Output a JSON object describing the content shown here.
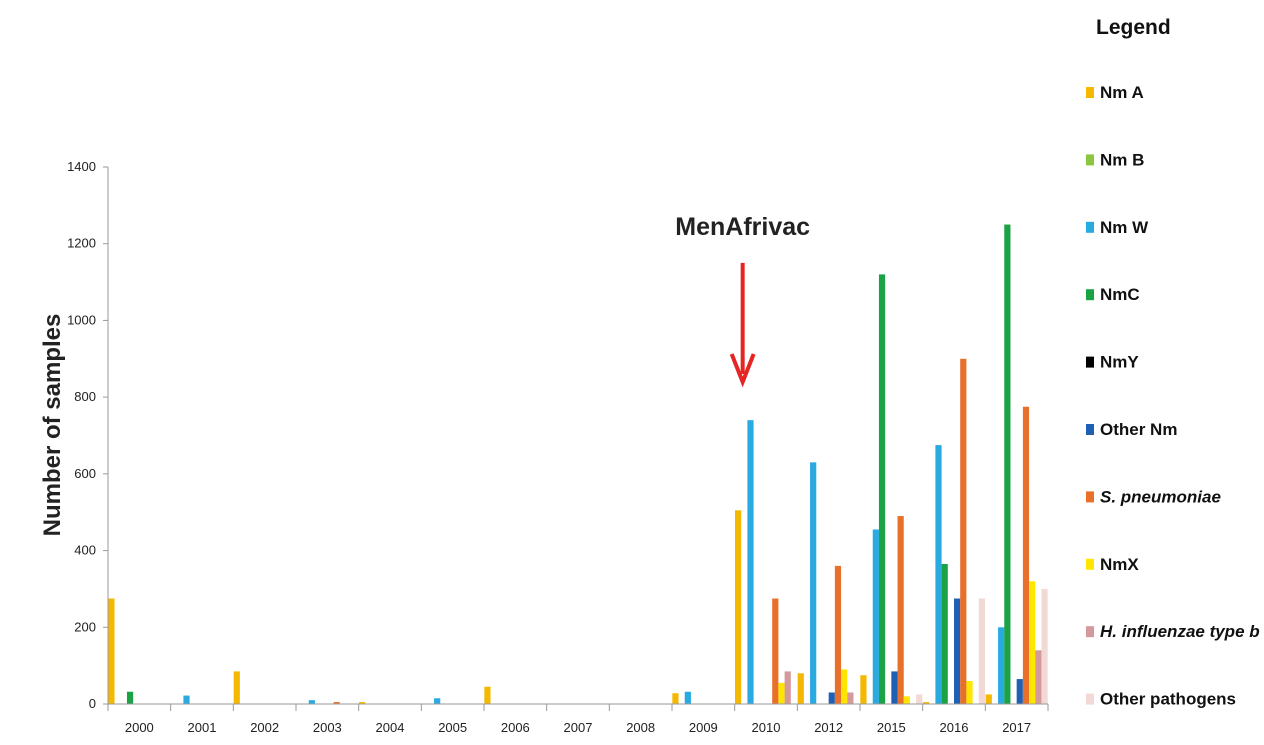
{
  "chart_data": {
    "type": "bar",
    "title": "",
    "xlabel": "",
    "ylabel": "Number of samples",
    "ylim": [
      0,
      1400
    ],
    "yticks": [
      0,
      200,
      400,
      600,
      800,
      1000,
      1200,
      1400
    ],
    "grid": false,
    "legend_position": "right",
    "legend_title": "Legend",
    "categories": [
      "2000",
      "2001",
      "2002",
      "2003",
      "2004",
      "2005",
      "2006",
      "2007",
      "2008",
      "2009",
      "2010",
      "2012",
      "2015",
      "2016",
      "2017"
    ],
    "series": [
      {
        "name": "Nm A",
        "color": "#f5b800",
        "italic": false,
        "values": [
          275,
          0,
          85,
          0,
          5,
          0,
          45,
          0,
          0,
          28,
          505,
          80,
          75,
          5,
          25
        ]
      },
      {
        "name": "Nm B",
        "color": "#8cc63f",
        "italic": false,
        "values": [
          0,
          0,
          0,
          0,
          0,
          0,
          0,
          0,
          0,
          0,
          0,
          0,
          0,
          0,
          0
        ]
      },
      {
        "name": "Nm W",
        "color": "#29abe2",
        "italic": false,
        "values": [
          0,
          22,
          0,
          10,
          0,
          15,
          0,
          0,
          0,
          32,
          740,
          630,
          455,
          675,
          200
        ]
      },
      {
        "name": "NmC",
        "color": "#1aa245",
        "italic": false,
        "values": [
          32,
          0,
          0,
          0,
          0,
          0,
          0,
          0,
          0,
          0,
          0,
          0,
          1120,
          365,
          1250
        ]
      },
      {
        "name": "NmY",
        "color": "#000000",
        "italic": false,
        "values": [
          0,
          0,
          0,
          0,
          0,
          0,
          0,
          0,
          0,
          0,
          0,
          0,
          0,
          0,
          0
        ]
      },
      {
        "name": "Other Nm",
        "color": "#1f5fb4",
        "italic": false,
        "values": [
          0,
          0,
          0,
          0,
          0,
          0,
          0,
          0,
          0,
          0,
          0,
          30,
          85,
          275,
          65
        ]
      },
      {
        "name": "S. pneumoniae",
        "color": "#e8702a",
        "italic": true,
        "values": [
          0,
          0,
          0,
          5,
          0,
          0,
          0,
          0,
          0,
          0,
          275,
          360,
          490,
          900,
          775
        ]
      },
      {
        "name": "NmX",
        "color": "#ffe600",
        "italic": false,
        "values": [
          0,
          0,
          0,
          0,
          0,
          0,
          0,
          0,
          0,
          0,
          55,
          90,
          20,
          60,
          320
        ]
      },
      {
        "name": "H. influenzae type b",
        "color": "#d4999a",
        "italic": true,
        "values": [
          0,
          0,
          0,
          0,
          0,
          0,
          0,
          0,
          0,
          0,
          85,
          30,
          0,
          0,
          140
        ]
      },
      {
        "name": "Other pathogens",
        "color": "#f3d9d6",
        "italic": false,
        "values": [
          0,
          0,
          0,
          0,
          0,
          0,
          0,
          0,
          0,
          0,
          0,
          0,
          25,
          275,
          300
        ]
      }
    ],
    "annotations": [
      {
        "text": "MenAfrivac",
        "category": "2010",
        "arrow_color": "#e52521",
        "arrow_from_value": 1150,
        "arrow_to_value": 850
      }
    ]
  }
}
